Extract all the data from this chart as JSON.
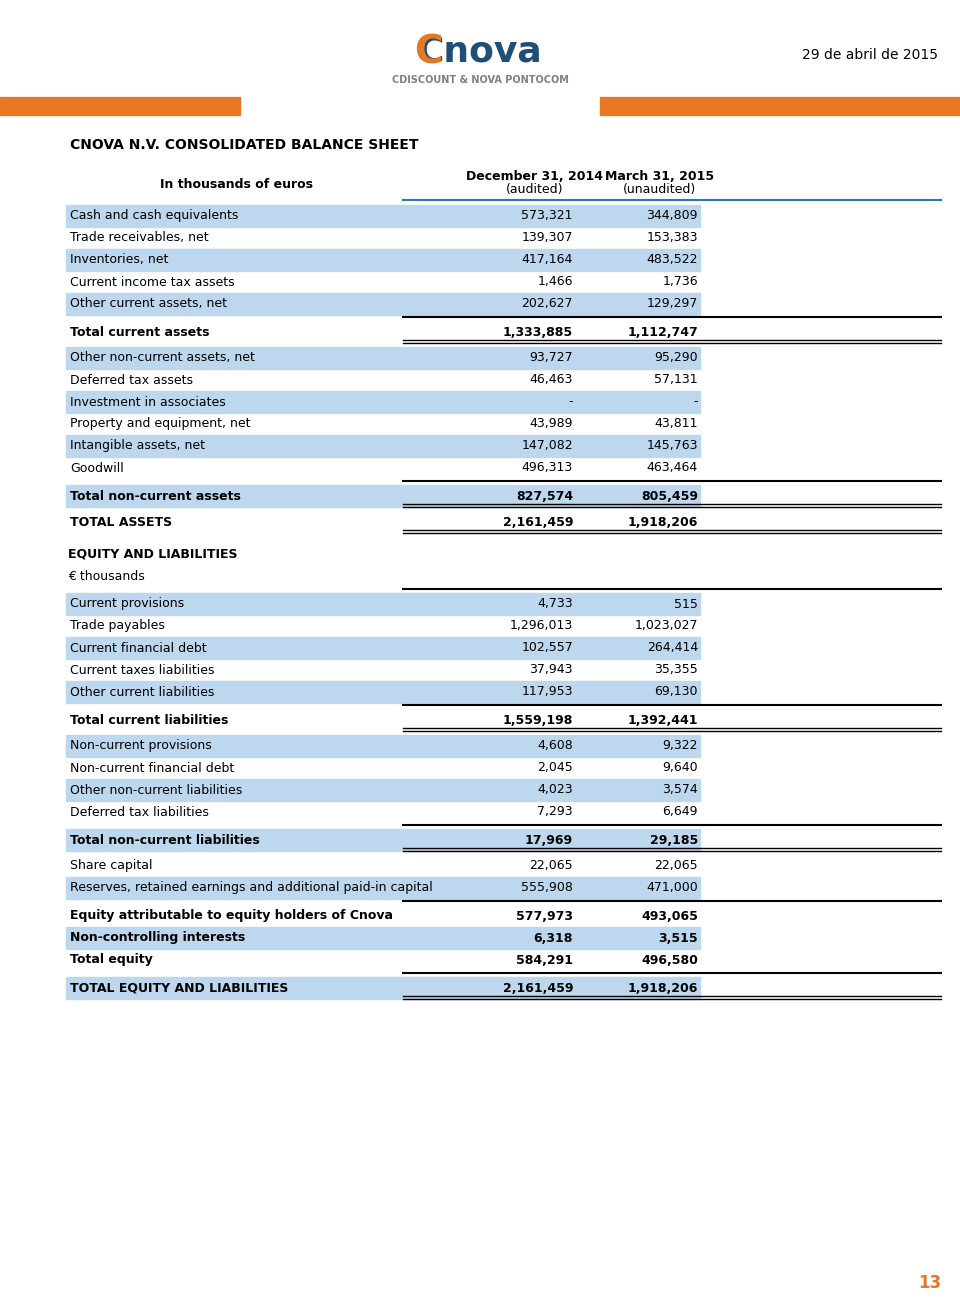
{
  "page_date": "29 de abril de 2015",
  "sheet_title": "CNOVA N.V. CONSOLIDATED BALANCE SHEET",
  "col1_header": "December 31, 2014\n(audited)",
  "col2_header": "March 31, 2015\n(unaudited)",
  "row_label_header": "In thousands of euros",
  "rows": [
    {
      "label": "Cash and cash equivalents",
      "v1": "573,321",
      "v2": "344,809",
      "shade": true,
      "bold": false,
      "section_break_before": false,
      "double_line_before": false,
      "double_line_after": false
    },
    {
      "label": "Trade receivables, net",
      "v1": "139,307",
      "v2": "153,383",
      "shade": false,
      "bold": false,
      "section_break_before": false,
      "double_line_before": false,
      "double_line_after": false
    },
    {
      "label": "Inventories, net",
      "v1": "417,164",
      "v2": "483,522",
      "shade": true,
      "bold": false,
      "section_break_before": false,
      "double_line_before": false,
      "double_line_after": false
    },
    {
      "label": "Current income tax assets",
      "v1": "1,466",
      "v2": "1,736",
      "shade": false,
      "bold": false,
      "section_break_before": false,
      "double_line_before": false,
      "double_line_after": false
    },
    {
      "label": "Other current assets, net",
      "v1": "202,627",
      "v2": "129,297",
      "shade": true,
      "bold": false,
      "section_break_before": false,
      "double_line_before": false,
      "double_line_after": false
    },
    {
      "label": "Total current assets",
      "v1": "1,333,885",
      "v2": "1,112,747",
      "shade": false,
      "bold": true,
      "section_break_before": true,
      "double_line_before": false,
      "double_line_after": true
    },
    {
      "label": "Other non-current assets, net",
      "v1": "93,727",
      "v2": "95,290",
      "shade": true,
      "bold": false,
      "section_break_before": false,
      "double_line_before": false,
      "double_line_after": false
    },
    {
      "label": "Deferred tax assets",
      "v1": "46,463",
      "v2": "57,131",
      "shade": false,
      "bold": false,
      "section_break_before": false,
      "double_line_before": false,
      "double_line_after": false
    },
    {
      "label": "Investment in associates",
      "v1": "-",
      "v2": "-",
      "shade": true,
      "bold": false,
      "section_break_before": false,
      "double_line_before": false,
      "double_line_after": false
    },
    {
      "label": "Property and equipment, net",
      "v1": "43,989",
      "v2": "43,811",
      "shade": false,
      "bold": false,
      "section_break_before": false,
      "double_line_before": false,
      "double_line_after": false
    },
    {
      "label": "Intangible assets, net",
      "v1": "147,082",
      "v2": "145,763",
      "shade": true,
      "bold": false,
      "section_break_before": false,
      "double_line_before": false,
      "double_line_after": false
    },
    {
      "label": "Goodwill",
      "v1": "496,313",
      "v2": "463,464",
      "shade": false,
      "bold": false,
      "section_break_before": false,
      "double_line_before": false,
      "double_line_after": false
    },
    {
      "label": "Total non-current assets",
      "v1": "827,574",
      "v2": "805,459",
      "shade": true,
      "bold": true,
      "section_break_before": true,
      "double_line_before": false,
      "double_line_after": true
    },
    {
      "label": "TOTAL ASSETS",
      "v1": "2,161,459",
      "v2": "1,918,206",
      "shade": false,
      "bold": true,
      "section_break_before": false,
      "double_line_before": false,
      "double_line_after": true
    },
    {
      "label": "EQUITY AND LIABILITIES",
      "v1": "",
      "v2": "",
      "shade": false,
      "bold": true,
      "section_break_before": true,
      "double_line_before": false,
      "double_line_after": false,
      "section_header": true
    },
    {
      "label": "€ thousands",
      "v1": "",
      "v2": "",
      "shade": false,
      "bold": false,
      "section_break_before": false,
      "double_line_before": false,
      "double_line_after": false,
      "section_header": true
    },
    {
      "label": "Current provisions",
      "v1": "4,733",
      "v2": "515",
      "shade": true,
      "bold": false,
      "section_break_before": true,
      "double_line_before": false,
      "double_line_after": false
    },
    {
      "label": "Trade payables",
      "v1": "1,296,013",
      "v2": "1,023,027",
      "shade": false,
      "bold": false,
      "section_break_before": false,
      "double_line_before": false,
      "double_line_after": false
    },
    {
      "label": "Current financial debt",
      "v1": "102,557",
      "v2": "264,414",
      "shade": true,
      "bold": false,
      "section_break_before": false,
      "double_line_before": false,
      "double_line_after": false
    },
    {
      "label": "Current taxes liabilities",
      "v1": "37,943",
      "v2": "35,355",
      "shade": false,
      "bold": false,
      "section_break_before": false,
      "double_line_before": false,
      "double_line_after": false
    },
    {
      "label": "Other current liabilities",
      "v1": "117,953",
      "v2": "69,130",
      "shade": true,
      "bold": false,
      "section_break_before": false,
      "double_line_before": false,
      "double_line_after": false
    },
    {
      "label": "Total current liabilities",
      "v1": "1,559,198",
      "v2": "1,392,441",
      "shade": false,
      "bold": true,
      "section_break_before": true,
      "double_line_before": false,
      "double_line_after": true
    },
    {
      "label": "Non-current provisions",
      "v1": "4,608",
      "v2": "9,322",
      "shade": true,
      "bold": false,
      "section_break_before": false,
      "double_line_before": false,
      "double_line_after": false
    },
    {
      "label": "Non-current financial debt",
      "v1": "2,045",
      "v2": "9,640",
      "shade": false,
      "bold": false,
      "section_break_before": false,
      "double_line_before": false,
      "double_line_after": false
    },
    {
      "label": "Other non-current liabilities",
      "v1": "4,023",
      "v2": "3,574",
      "shade": true,
      "bold": false,
      "section_break_before": false,
      "double_line_before": false,
      "double_line_after": false
    },
    {
      "label": "Deferred tax liabilities",
      "v1": "7,293",
      "v2": "6,649",
      "shade": false,
      "bold": false,
      "section_break_before": false,
      "double_line_before": false,
      "double_line_after": false
    },
    {
      "label": "Total non-current liabilities",
      "v1": "17,969",
      "v2": "29,185",
      "shade": true,
      "bold": true,
      "section_break_before": true,
      "double_line_before": false,
      "double_line_after": true
    },
    {
      "label": "Share capital",
      "v1": "22,065",
      "v2": "22,065",
      "shade": false,
      "bold": false,
      "section_break_before": false,
      "double_line_before": false,
      "double_line_after": false
    },
    {
      "label": "Reserves, retained earnings and additional paid-in capital",
      "v1": "555,908",
      "v2": "471,000",
      "shade": true,
      "bold": false,
      "section_break_before": false,
      "double_line_before": false,
      "double_line_after": false
    },
    {
      "label": "Equity attributable to equity holders of Cnova",
      "v1": "577,973",
      "v2": "493,065",
      "shade": false,
      "bold": true,
      "section_break_before": true,
      "double_line_before": false,
      "double_line_after": false
    },
    {
      "label": "Non-controlling interests",
      "v1": "6,318",
      "v2": "3,515",
      "shade": true,
      "bold": true,
      "section_break_before": false,
      "double_line_before": false,
      "double_line_after": false
    },
    {
      "label": "Total equity",
      "v1": "584,291",
      "v2": "496,580",
      "shade": false,
      "bold": true,
      "section_break_before": false,
      "double_line_before": false,
      "double_line_after": false
    },
    {
      "label": "TOTAL EQUITY AND LIABILITIES",
      "v1": "2,161,459",
      "v2": "1,918,206",
      "shade": true,
      "bold": true,
      "section_break_before": true,
      "double_line_before": false,
      "double_line_after": true
    }
  ],
  "bg_color": "#ffffff",
  "shade_color": "#bdd7ee",
  "orange_color": "#e87722",
  "blue_color": "#1f4e79",
  "text_color": "#000000",
  "header_line_color": "#2e75b6",
  "page_num": "13"
}
